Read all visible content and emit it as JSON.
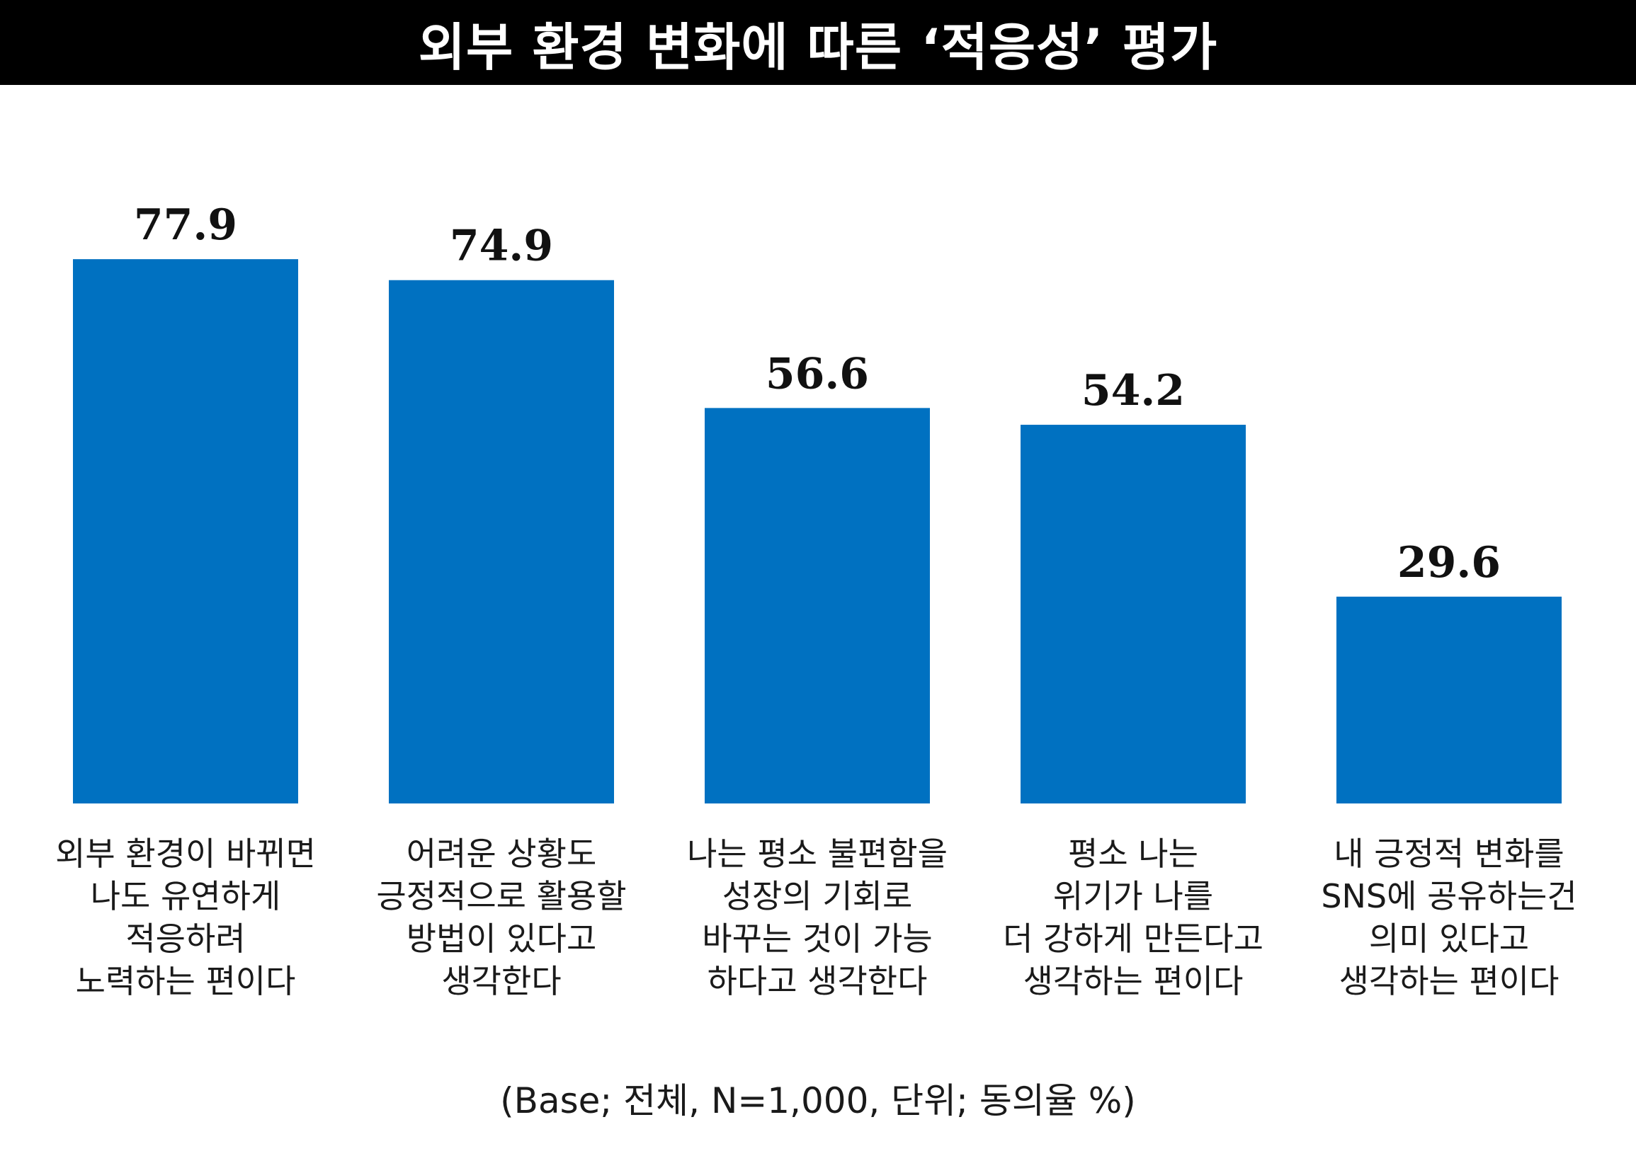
{
  "title": "외부 환경 변화에 따른 ‘적응성’ 평가",
  "footnote": "(Base; 전체, N=1,000, 단위; 동의율 %)",
  "colors": {
    "bar": "#0071C1",
    "title_bg": "#000000",
    "title_text": "#FFFFFF"
  },
  "chart_data": {
    "type": "bar",
    "title": "외부 환경 변화에 따른 ‘적응성’ 평가",
    "xlabel": "",
    "ylabel": "",
    "ylim": [
      0,
      100
    ],
    "grid": false,
    "legend": "none",
    "categories": [
      [
        "외부 환경이 바뀌면",
        "나도 유연하게",
        "적응하려",
        "노력하는 편이다"
      ],
      [
        "어려운 상황도",
        "긍정적으로 활용할",
        "방법이 있다고",
        "생각한다"
      ],
      [
        "나는 평소 불편함을",
        "성장의 기회로",
        "바꾸는 것이 가능",
        "하다고 생각한다"
      ],
      [
        "평소 나는",
        "위기가 나를",
        "더 강하게 만든다고",
        "생각하는 편이다"
      ],
      [
        "내 긍정적 변화를",
        "SNS에 공유하는건",
        "의미 있다고",
        "생각하는 편이다"
      ]
    ],
    "values": [
      77.9,
      74.9,
      56.6,
      54.2,
      29.6
    ],
    "value_labels": [
      "77.9",
      "74.9",
      "56.6",
      "54.2",
      "29.6"
    ]
  }
}
